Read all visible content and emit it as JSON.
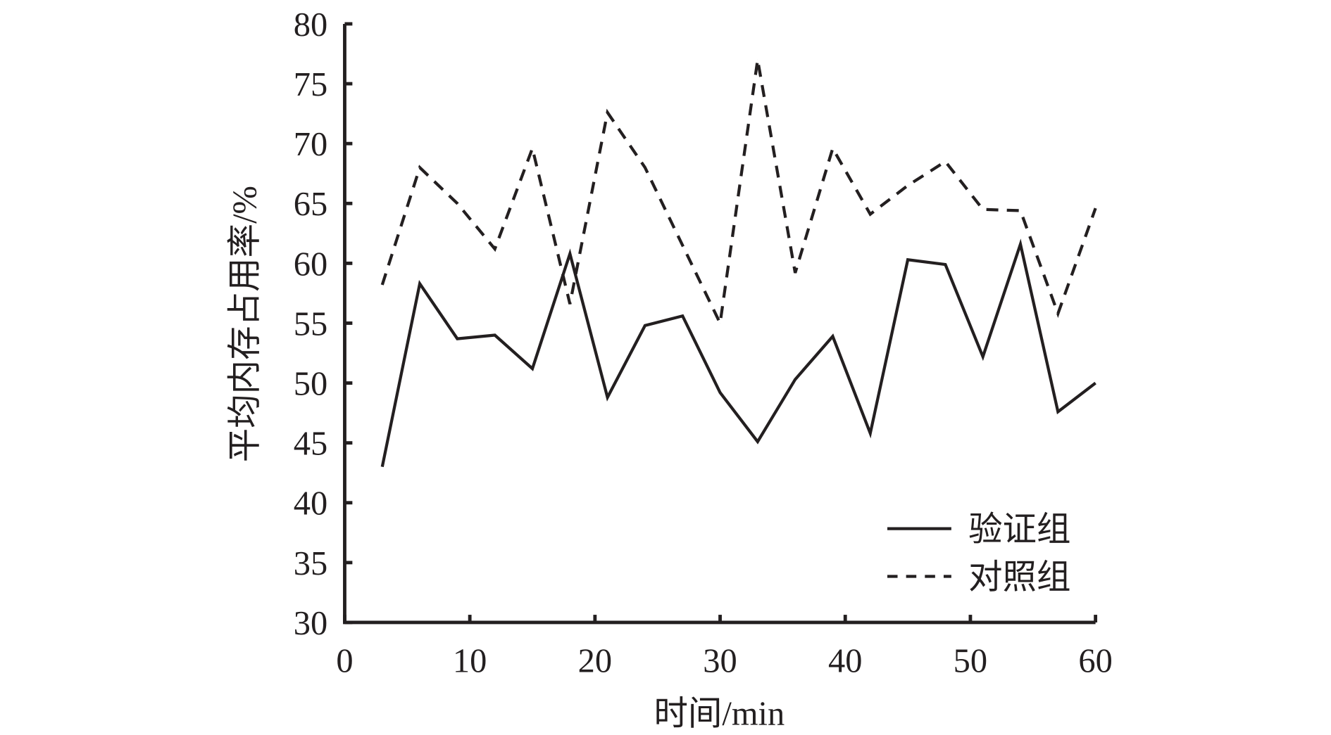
{
  "chart_data": {
    "type": "line",
    "title": "",
    "xlabel": "时间/min",
    "ylabel": "平均内存占用率/%",
    "xlim": [
      0,
      60
    ],
    "ylim": [
      30,
      80
    ],
    "xticks": [
      "0",
      "10",
      "20",
      "30",
      "40",
      "50",
      "60"
    ],
    "yticks": [
      "30",
      "35",
      "40",
      "45",
      "50",
      "55",
      "60",
      "65",
      "70",
      "75",
      "80"
    ],
    "grid": false,
    "legend_position": "bottom-right",
    "x": [
      3,
      6,
      9,
      12,
      15,
      18,
      21,
      24,
      27,
      30,
      33,
      36,
      39,
      42,
      45,
      48,
      51,
      54,
      57,
      60
    ],
    "series": [
      {
        "name": "验证组",
        "style": "solid",
        "values": [
          43,
          58.3,
          53.7,
          54,
          51.2,
          60.8,
          48.8,
          54.8,
          55.6,
          49.2,
          45.1,
          50.3,
          53.9,
          45.8,
          60.3,
          59.9,
          52.2,
          61.6,
          47.6,
          50
        ]
      },
      {
        "name": "对照组",
        "style": "dashed",
        "values": [
          58.2,
          68,
          65,
          61.2,
          69.6,
          56.6,
          72.6,
          68,
          61.5,
          55,
          77,
          59.2,
          69.6,
          64.1,
          66.5,
          68.5,
          64.5,
          64.4,
          55.8,
          64.6
        ]
      }
    ],
    "color": "#231f20"
  }
}
